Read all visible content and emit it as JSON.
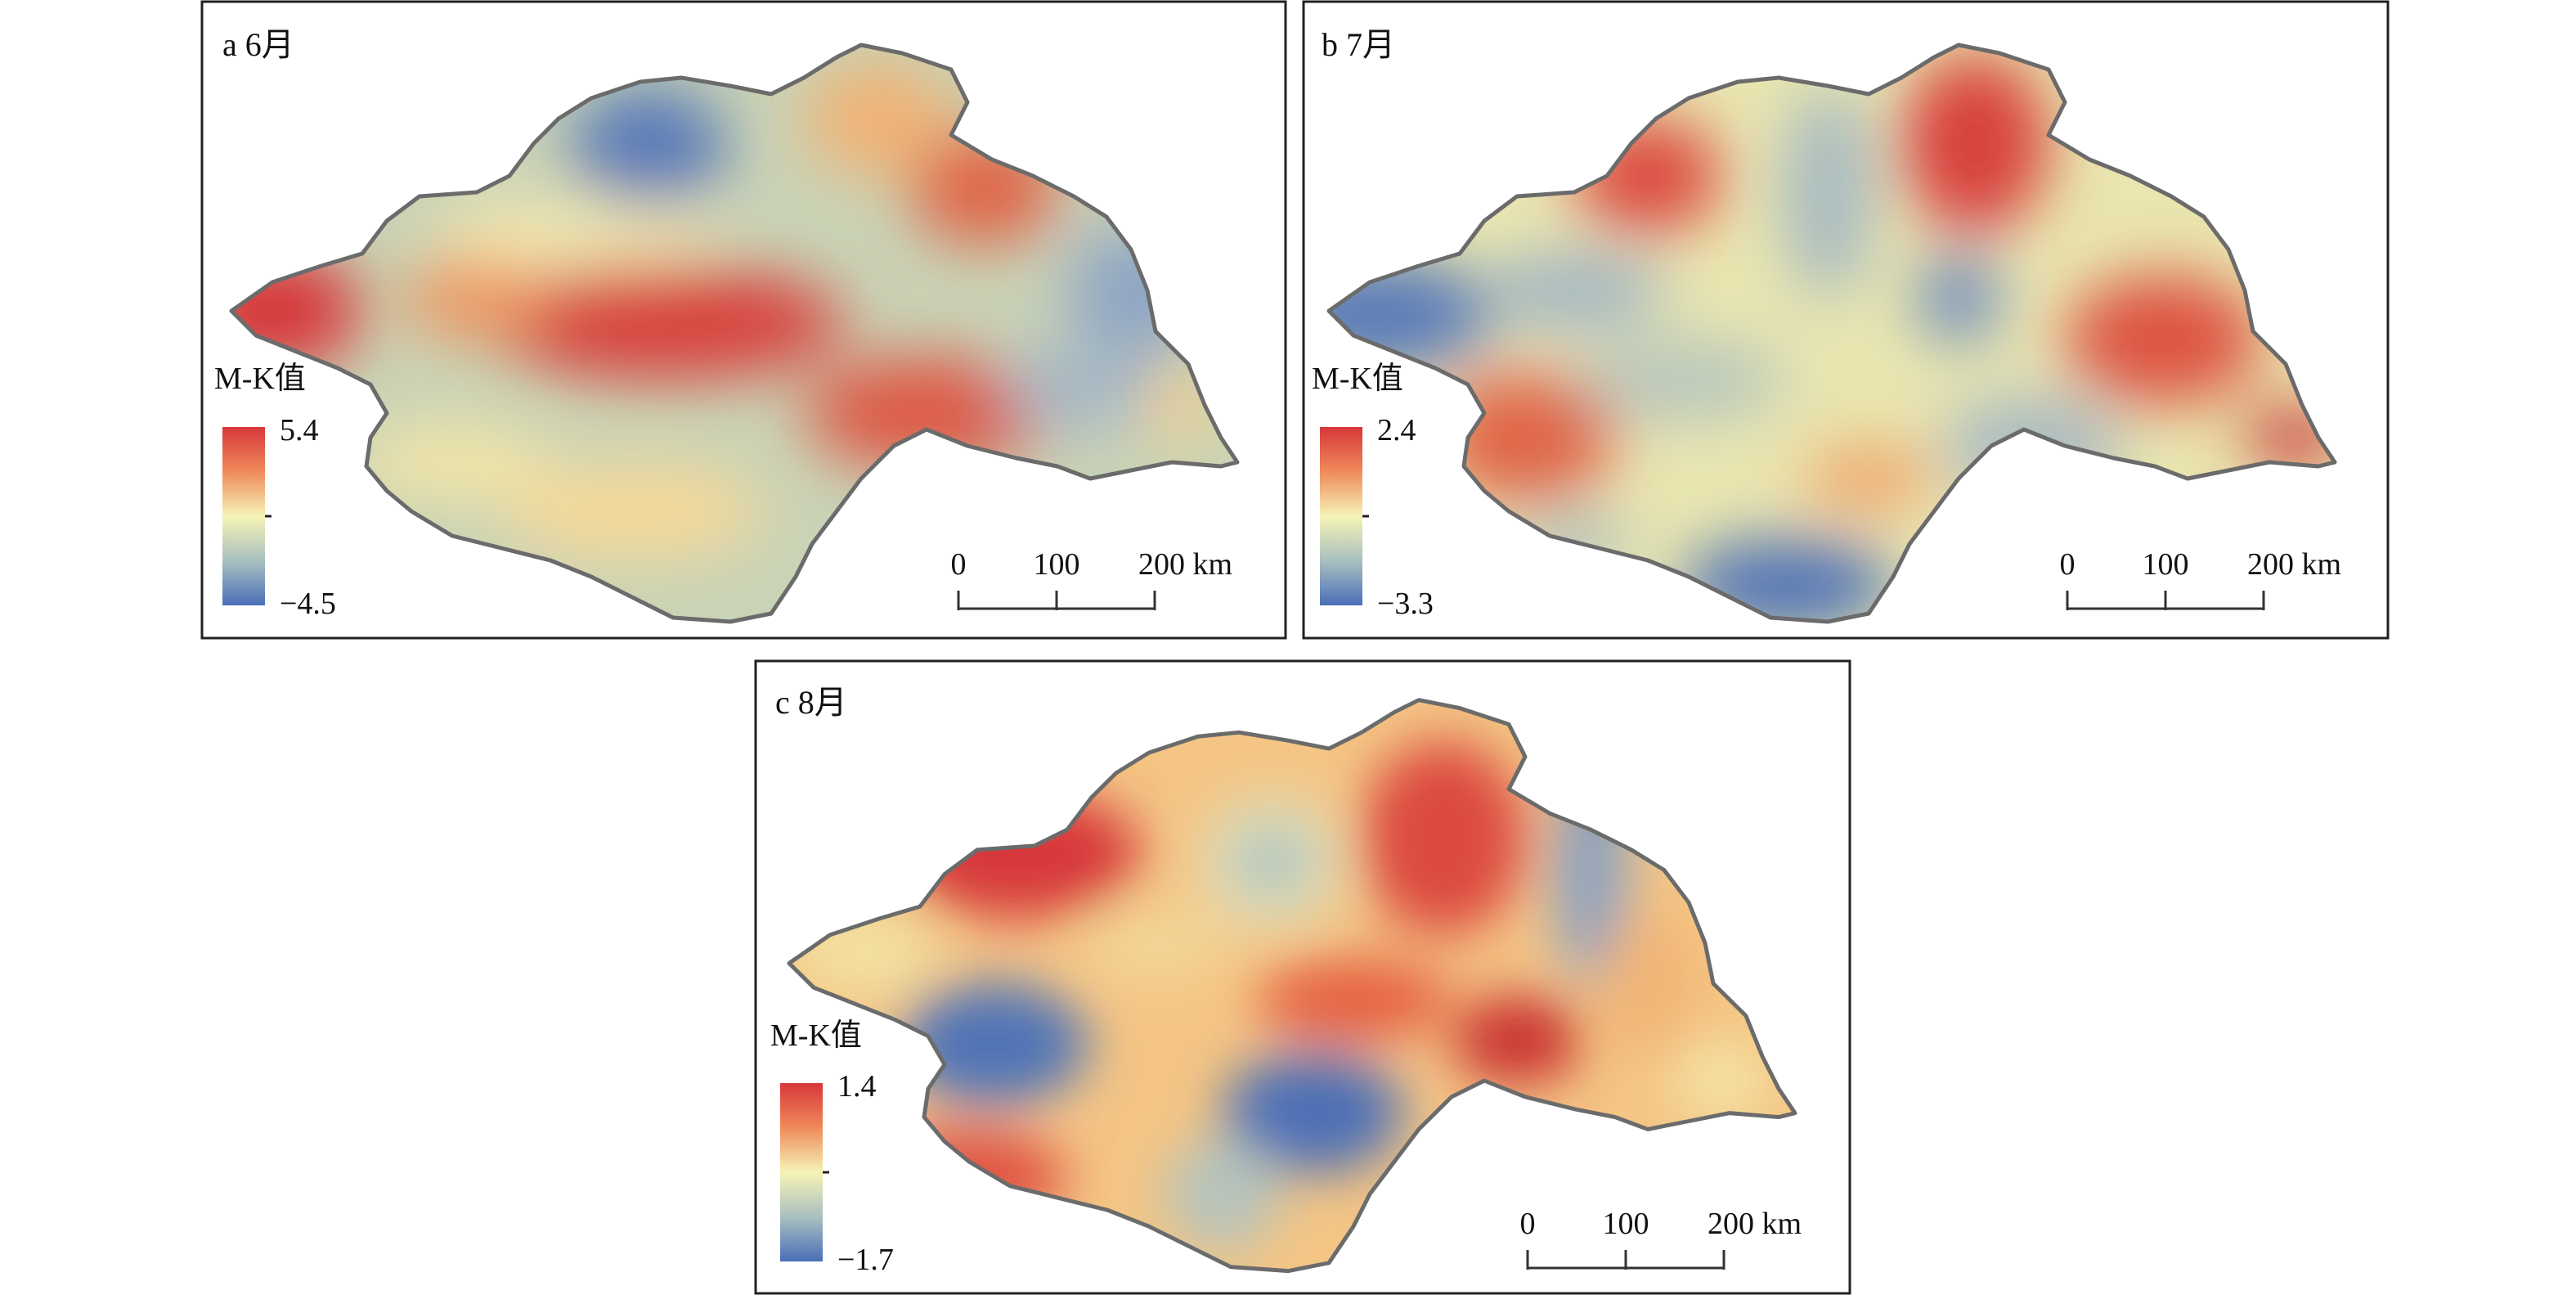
{
  "panels": [
    {
      "id": "a",
      "title": "a 6月",
      "legend": {
        "title": "M-K值",
        "max": "5.4",
        "min": "−4.5"
      },
      "scale": {
        "labels": [
          "0",
          "100",
          "200 km"
        ]
      }
    },
    {
      "id": "b",
      "title": "b 7月",
      "legend": {
        "title": "M-K值",
        "max": "2.4",
        "min": "−3.3"
      },
      "scale": {
        "labels": [
          "0",
          "100",
          "200 km"
        ]
      }
    },
    {
      "id": "c",
      "title": "c 8月",
      "legend": {
        "title": "M-K值",
        "max": "1.4",
        "min": "−1.7"
      },
      "scale": {
        "labels": [
          "0",
          "100",
          "200 km"
        ]
      }
    }
  ],
  "colors": {
    "high": "#d7373a",
    "mid": "#f6f3b6",
    "low": "#4a6fb8",
    "boundary": "#6b6b6b"
  }
}
